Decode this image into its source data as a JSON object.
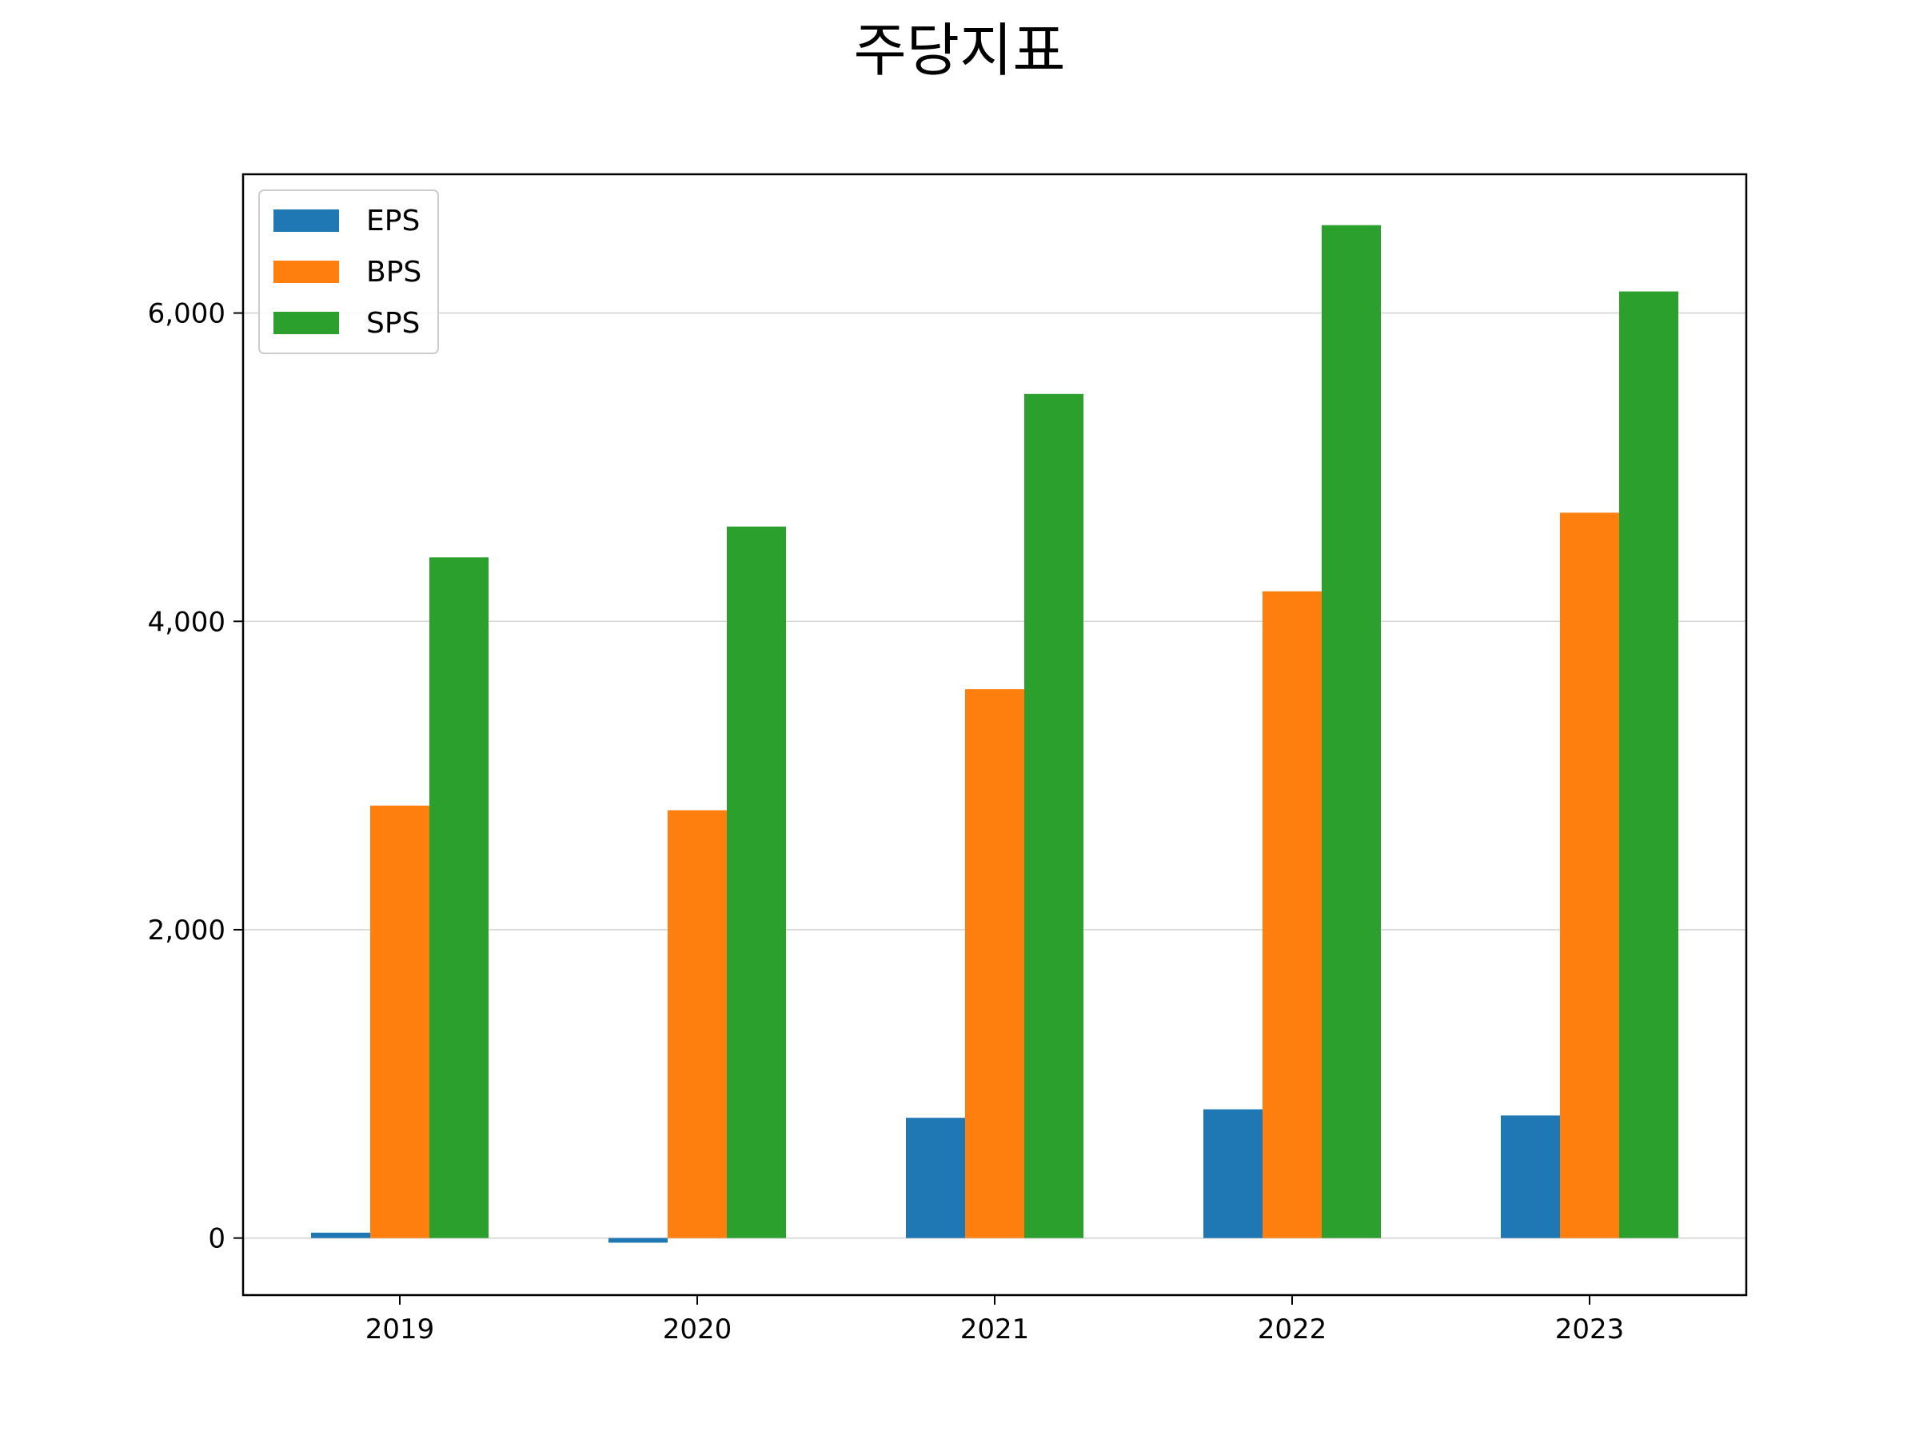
{
  "chart_data": {
    "type": "bar",
    "title": "주당지표",
    "xlabel": "",
    "ylabel": "",
    "categories": [
      "2019",
      "2020",
      "2021",
      "2022",
      "2023"
    ],
    "series": [
      {
        "name": "EPS",
        "color": "#1f77b4",
        "values": [
          35,
          -30,
          780,
          835,
          795
        ]
      },
      {
        "name": "BPS",
        "color": "#ff7f0e",
        "values": [
          2805,
          2775,
          3560,
          4195,
          4705
        ]
      },
      {
        "name": "SPS",
        "color": "#2ca02c",
        "values": [
          4415,
          4615,
          5475,
          6570,
          6140
        ]
      }
    ],
    "ylim": [
      -370,
      6900
    ],
    "yticks": [
      0,
      2000,
      4000,
      6000
    ],
    "ytick_labels": [
      "0",
      "2,000",
      "4,000",
      "6,000"
    ],
    "grid": "y",
    "legend_position": "upper-left"
  }
}
